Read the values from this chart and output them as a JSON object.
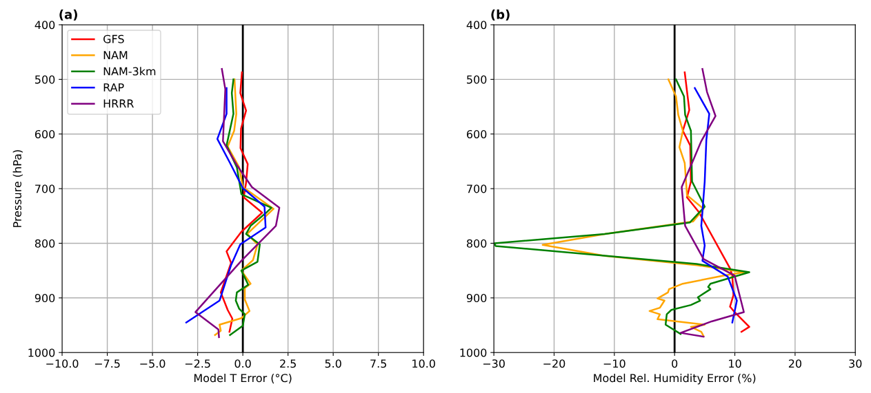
{
  "chart_data": [
    {
      "type": "line",
      "title": "(a)",
      "xlabel": "Model T Error (°C)",
      "ylabel": "Pressure (hPa)",
      "xlim": [
        -10,
        10
      ],
      "xticks": [
        {
          "value": -10,
          "label": "−10.0"
        },
        {
          "value": -7.5,
          "label": "−7.5"
        },
        {
          "value": -5,
          "label": "−5.0"
        },
        {
          "value": -2.5,
          "label": "−2.5"
        },
        {
          "value": 0,
          "label": "0.0"
        },
        {
          "value": 2.5,
          "label": "2.5"
        },
        {
          "value": 5,
          "label": "5.0"
        },
        {
          "value": 7.5,
          "label": "7.5"
        },
        {
          "value": 10,
          "label": "10.0"
        }
      ],
      "ylim": [
        1000,
        400
      ],
      "yticks": [
        400,
        500,
        600,
        700,
        800,
        900,
        1000
      ],
      "grid": true,
      "legend": "top left",
      "ref_lines": [
        {
          "axis": "x",
          "value": 0,
          "color": "#000000"
        }
      ],
      "series": [
        {
          "name": "GFS",
          "color": "#ff0000",
          "x": [
            -0.05,
            -0.14,
            0.18,
            -0.1,
            -0.13,
            0.27,
            0.18,
            0.05,
            1.07,
            -0.08,
            -0.9,
            -0.65,
            -1.22,
            -0.84,
            -0.58,
            -0.74
          ],
          "values": [
            487,
            525,
            557,
            590,
            626,
            655,
            689,
            716,
            744,
            779,
            815,
            836,
            890,
            922,
            938,
            962
          ]
        },
        {
          "name": "NAM",
          "color": "#ffa500",
          "x": [
            -0.46,
            -0.36,
            -0.48,
            -0.84,
            -0.2,
            0,
            1.7,
            0.24,
            0.81,
            0.56,
            -0.08,
            0.43,
            0.11,
            0.11,
            0.37,
            -0.08,
            -1.29,
            -1.22,
            -1.54
          ],
          "values": [
            500,
            563,
            594,
            623,
            661,
            697,
            737,
            783,
            802,
            831,
            850,
            874,
            882,
            903,
            924,
            937,
            949,
            960,
            968
          ]
        },
        {
          "name": "NAM-3km",
          "color": "#008000",
          "x": [
            -0.52,
            -0.61,
            -0.52,
            -0.9,
            -0.33,
            -0.08,
            1.58,
            1.26,
            0.43,
            0.18,
            0.94,
            0.81,
            -0.08,
            0.3,
            -0.33,
            -0.39,
            -0.2,
            0.11,
            0,
            -0.71
          ],
          "values": [
            500,
            525,
            563,
            621,
            661,
            710,
            735,
            745,
            768,
            783,
            802,
            834,
            850,
            876,
            890,
            905,
            920,
            930,
            951,
            968
          ]
        },
        {
          "name": "RAP",
          "color": "#0000ff",
          "x": [
            -0.9,
            -0.9,
            -1.41,
            -0.71,
            0,
            1.2,
            1.26,
            -0.14,
            -0.65,
            -1.29,
            -3.13
          ],
          "values": [
            516,
            563,
            609,
            653,
            699,
            733,
            771,
            802,
            840,
            905,
            945
          ]
        },
        {
          "name": "HRRR",
          "color": "#800080",
          "x": [
            -1.16,
            -0.97,
            -1.1,
            -0.33,
            0.5,
            2.02,
            1.83,
            -0.08,
            -2.62,
            -1.35,
            -1.32
          ],
          "values": [
            481,
            518,
            613,
            657,
            697,
            735,
            768,
            832,
            926,
            958,
            972
          ]
        }
      ]
    },
    {
      "type": "line",
      "title": "(b)",
      "xlabel": "Model Rel. Humidity Error (%)",
      "xlim": [
        -30,
        30
      ],
      "xticks": [
        {
          "value": -30,
          "label": "−30"
        },
        {
          "value": -20,
          "label": "−20"
        },
        {
          "value": -10,
          "label": "−10"
        },
        0,
        10,
        20,
        30
      ],
      "ylim": [
        1000,
        400
      ],
      "yticks": [
        400,
        500,
        600,
        700,
        800,
        900,
        1000
      ],
      "grid": true,
      "ref_lines": [
        {
          "axis": "x",
          "value": 0,
          "color": "#000000"
        }
      ],
      "series": [
        {
          "color": "#ff0000",
          "x": [
            1.68,
            2.44,
            1.37,
            2.6,
            2.71,
            2.06,
            4.04,
            9.2,
            9.58,
            9.77,
            9.2,
            9.96,
            12.4,
            11.1
          ],
          "values": [
            487,
            556,
            594,
            621,
            687,
            716,
            743,
            846,
            859,
            895,
            916,
            926,
            953,
            962
          ]
        },
        {
          "color": "#ffa500",
          "x": [
            -1.03,
            0.23,
            0.61,
            1.37,
            0.8,
            1.68,
            2.06,
            4.81,
            3.09,
            -11.6,
            -21.9,
            -11.6,
            3.66,
            11.5,
            8.24,
            1.37,
            -0.92,
            -1.1,
            -2.83,
            -1.68,
            -2.44,
            -4.16,
            -2.44,
            -2.83,
            5.0,
            2.71,
            4.43,
            4.81
          ],
          "values": [
            500,
            531,
            565,
            594,
            624,
            653,
            712,
            737,
            760,
            783,
            803,
            823,
            840,
            853,
            859,
            874,
            884,
            890,
            901,
            905,
            918,
            924,
            930,
            939,
            949,
            953,
            962,
            970
          ]
        },
        {
          "color": "#008000",
          "x": [
            0.23,
            1.56,
            1.75,
            2.71,
            2.9,
            5.0,
            2.52,
            -11.6,
            -29.9,
            -29.7,
            3.66,
            12.4,
            5.95,
            5.57,
            5.95,
            3.86,
            4.24,
            2.71,
            -0.53,
            -1.3,
            -1.49,
            1.0
          ],
          "values": [
            500,
            531,
            565,
            594,
            687,
            733,
            762,
            783,
            800,
            805,
            838,
            853,
            874,
            880,
            884,
            899,
            905,
            913,
            922,
            930,
            949,
            966
          ]
        },
        {
          "color": "#0000ff",
          "x": [
            3.36,
            5.76,
            5.27,
            5.0,
            4.62,
            4.43,
            5.0,
            4.62,
            8.82,
            10.34,
            9.58
          ],
          "values": [
            516,
            563,
            611,
            687,
            743,
            768,
            804,
            832,
            861,
            905,
            945
          ]
        },
        {
          "color": "#800080",
          "x": [
            4.62,
            5.38,
            6.79,
            4.43,
            2.9,
            1.18,
            1.56,
            1.75,
            4.81,
            9.96,
            11.5,
            6.15,
            1.0,
            4.81
          ],
          "values": [
            481,
            523,
            567,
            613,
            653,
            697,
            745,
            768,
            829,
            859,
            926,
            943,
            964,
            971
          ]
        }
      ]
    }
  ]
}
